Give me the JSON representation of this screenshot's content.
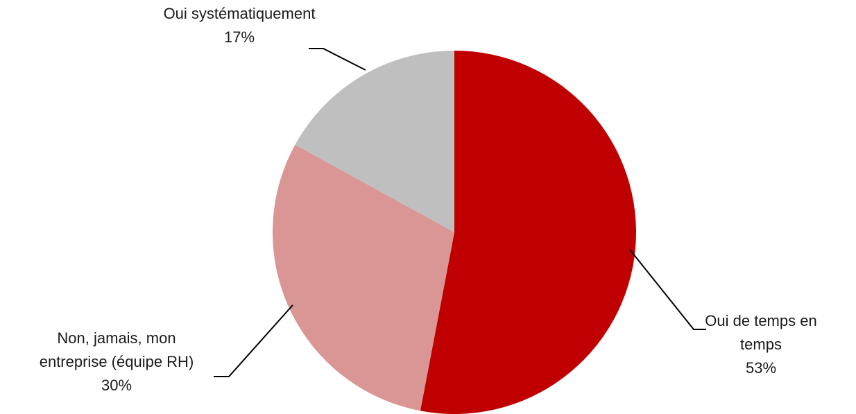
{
  "chart_data": {
    "type": "pie",
    "slices": [
      {
        "label": [
          "Oui de temps en",
          "temps"
        ],
        "value_label": "53%",
        "value": 53,
        "color": "#c00000"
      },
      {
        "label": [
          "Non, jamais, mon",
          "entreprise (équipe RH)"
        ],
        "value_label": "30%",
        "value": 30,
        "color": "#d99694"
      },
      {
        "label": [
          "Oui systématiquement"
        ],
        "value_label": "17%",
        "value": 17,
        "color": "#bfbfbf"
      }
    ],
    "start": "12 o'clock",
    "direction": "clockwise",
    "legend": "none",
    "labels": "outside with leader lines"
  }
}
